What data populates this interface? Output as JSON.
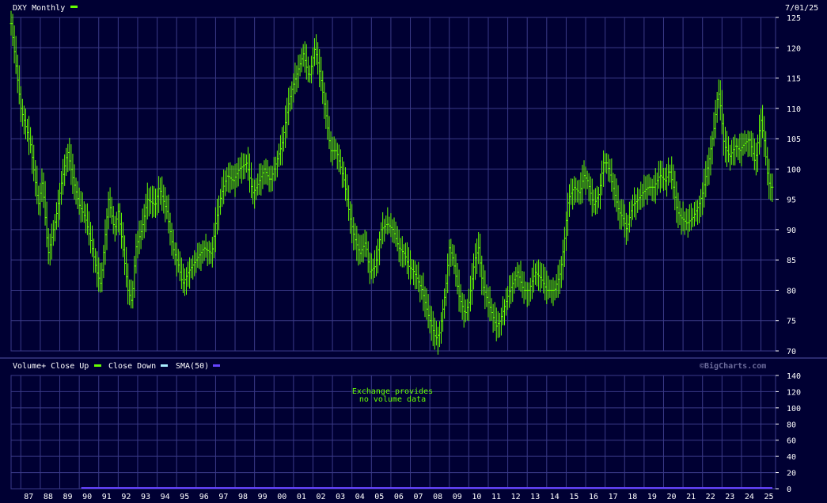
{
  "header": {
    "title": "DXY Monthly",
    "date": "7/01/25",
    "series_color": "#66ff00"
  },
  "volume": {
    "legend": [
      {
        "label": "Volume+ Close Up",
        "color": "#66ff00"
      },
      {
        "label": "Close Down",
        "color": "#aaeeff"
      },
      {
        "label": "SMA(50)",
        "color": "#6644ff"
      }
    ],
    "watermark": "©BigCharts.com",
    "no_data_line1": "Exchange provides",
    "no_data_line2": "no volume data"
  },
  "chart_data": [
    {
      "type": "line",
      "title": "DXY Monthly",
      "xlim": [
        1986.5,
        2025.75
      ],
      "ylim": [
        70,
        125
      ],
      "yticks": [
        70,
        75,
        80,
        85,
        90,
        95,
        100,
        105,
        110,
        115,
        120,
        125
      ],
      "xtick_labels": [
        "87",
        "88",
        "89",
        "90",
        "91",
        "92",
        "93",
        "94",
        "95",
        "96",
        "97",
        "98",
        "99",
        "00",
        "01",
        "02",
        "03",
        "04",
        "05",
        "06",
        "07",
        "08",
        "09",
        "10",
        "11",
        "12",
        "13",
        "14",
        "15",
        "16",
        "17",
        "18",
        "19",
        "20",
        "21",
        "22",
        "23",
        "24",
        "25"
      ],
      "grid": true,
      "series": [
        {
          "color": "#66ff00",
          "points": [
            [
              1986.5,
              124
            ],
            [
              1987.0,
              110
            ],
            [
              1987.5,
              104
            ],
            [
              1987.9,
              94
            ],
            [
              1988.1,
              98
            ],
            [
              1988.4,
              86
            ],
            [
              1988.8,
              92
            ],
            [
              1989.1,
              98
            ],
            [
              1989.4,
              103
            ],
            [
              1989.7,
              98
            ],
            [
              1990.0,
              94
            ],
            [
              1990.3,
              92
            ],
            [
              1990.6,
              88
            ],
            [
              1990.9,
              83
            ],
            [
              1991.1,
              81
            ],
            [
              1991.5,
              95
            ],
            [
              1991.8,
              90
            ],
            [
              1992.0,
              93
            ],
            [
              1992.2,
              88
            ],
            [
              1992.5,
              80
            ],
            [
              1992.7,
              78
            ],
            [
              1992.9,
              87
            ],
            [
              1993.2,
              90
            ],
            [
              1993.5,
              95
            ],
            [
              1993.9,
              94
            ],
            [
              1994.1,
              97
            ],
            [
              1994.5,
              93
            ],
            [
              1994.8,
              87
            ],
            [
              1995.1,
              84
            ],
            [
              1995.3,
              81
            ],
            [
              1995.6,
              83
            ],
            [
              1996.0,
              85
            ],
            [
              1996.4,
              87
            ],
            [
              1996.8,
              86
            ],
            [
              1997.0,
              91
            ],
            [
              1997.3,
              96
            ],
            [
              1997.6,
              99
            ],
            [
              1997.9,
              98
            ],
            [
              1998.2,
              100
            ],
            [
              1998.6,
              101
            ],
            [
              1998.9,
              96
            ],
            [
              1999.1,
              97
            ],
            [
              1999.5,
              100
            ],
            [
              1999.8,
              98
            ],
            [
              2000.1,
              101
            ],
            [
              2000.4,
              104
            ],
            [
              2000.7,
              110
            ],
            [
              2000.9,
              113
            ],
            [
              2001.2,
              116
            ],
            [
              2001.5,
              119
            ],
            [
              2001.8,
              115
            ],
            [
              2002.1,
              120
            ],
            [
              2002.4,
              115
            ],
            [
              2002.7,
              108
            ],
            [
              2002.9,
              103
            ],
            [
              2003.2,
              103
            ],
            [
              2003.6,
              98
            ],
            [
              2003.9,
              92
            ],
            [
              2004.1,
              89
            ],
            [
              2004.4,
              86
            ],
            [
              2004.7,
              88
            ],
            [
              2004.9,
              83
            ],
            [
              2005.2,
              84
            ],
            [
              2005.5,
              90
            ],
            [
              2005.8,
              91
            ],
            [
              2006.1,
              90
            ],
            [
              2006.4,
              87
            ],
            [
              2006.7,
              86
            ],
            [
              2006.9,
              84
            ],
            [
              2007.2,
              83
            ],
            [
              2007.6,
              80
            ],
            [
              2007.9,
              76
            ],
            [
              2008.1,
              74
            ],
            [
              2008.3,
              72
            ],
            [
              2008.5,
              73
            ],
            [
              2008.8,
              80
            ],
            [
              2009.0,
              87
            ],
            [
              2009.2,
              85
            ],
            [
              2009.5,
              79
            ],
            [
              2009.8,
              76
            ],
            [
              2010.0,
              78
            ],
            [
              2010.3,
              85
            ],
            [
              2010.5,
              87
            ],
            [
              2010.7,
              81
            ],
            [
              2010.9,
              79
            ],
            [
              2011.2,
              76
            ],
            [
              2011.4,
              74
            ],
            [
              2011.6,
              75
            ],
            [
              2011.9,
              78
            ],
            [
              2012.1,
              80
            ],
            [
              2012.5,
              83
            ],
            [
              2012.8,
              80
            ],
            [
              2013.1,
              80
            ],
            [
              2013.4,
              83
            ],
            [
              2013.7,
              82
            ],
            [
              2014.0,
              80
            ],
            [
              2014.4,
              80
            ],
            [
              2014.7,
              83
            ],
            [
              2014.9,
              88
            ],
            [
              2015.1,
              95
            ],
            [
              2015.4,
              97
            ],
            [
              2015.7,
              96
            ],
            [
              2015.9,
              99
            ],
            [
              2016.1,
              98
            ],
            [
              2016.4,
              94
            ],
            [
              2016.7,
              96
            ],
            [
              2016.9,
              101
            ],
            [
              2017.1,
              101
            ],
            [
              2017.4,
              97
            ],
            [
              2017.7,
              93
            ],
            [
              2017.9,
              92
            ],
            [
              2018.1,
              90
            ],
            [
              2018.4,
              94
            ],
            [
              2018.7,
              95
            ],
            [
              2018.9,
              96
            ],
            [
              2019.2,
              97
            ],
            [
              2019.5,
              97
            ],
            [
              2019.8,
              99
            ],
            [
              2020.1,
              98
            ],
            [
              2020.3,
              100
            ],
            [
              2020.5,
              97
            ],
            [
              2020.7,
              93
            ],
            [
              2020.9,
              92
            ],
            [
              2021.2,
              91
            ],
            [
              2021.5,
              92
            ],
            [
              2021.8,
              94
            ],
            [
              2022.0,
              96
            ],
            [
              2022.3,
              101
            ],
            [
              2022.6,
              107
            ],
            [
              2022.8,
              113
            ],
            [
              2022.9,
              111
            ],
            [
              2023.1,
              104
            ],
            [
              2023.4,
              102
            ],
            [
              2023.7,
              104
            ],
            [
              2023.9,
              103
            ],
            [
              2024.1,
              104
            ],
            [
              2024.4,
              105
            ],
            [
              2024.7,
              101
            ],
            [
              2024.9,
              106
            ],
            [
              2025.0,
              108
            ],
            [
              2025.2,
              104
            ],
            [
              2025.3,
              100
            ],
            [
              2025.45,
              97
            ],
            [
              2025.6,
              97
            ]
          ]
        }
      ]
    },
    {
      "type": "bar",
      "title": "Volume+ Close Up",
      "ylim": [
        0,
        140
      ],
      "yticks": [
        0,
        20,
        40,
        60,
        80,
        100,
        120,
        140
      ],
      "series": [
        {
          "name": "Volume+ Close Up",
          "values": []
        },
        {
          "name": "Close Down",
          "values": []
        },
        {
          "name": "SMA(50)",
          "values": [
            0
          ],
          "color": "#6644ff"
        }
      ]
    }
  ]
}
